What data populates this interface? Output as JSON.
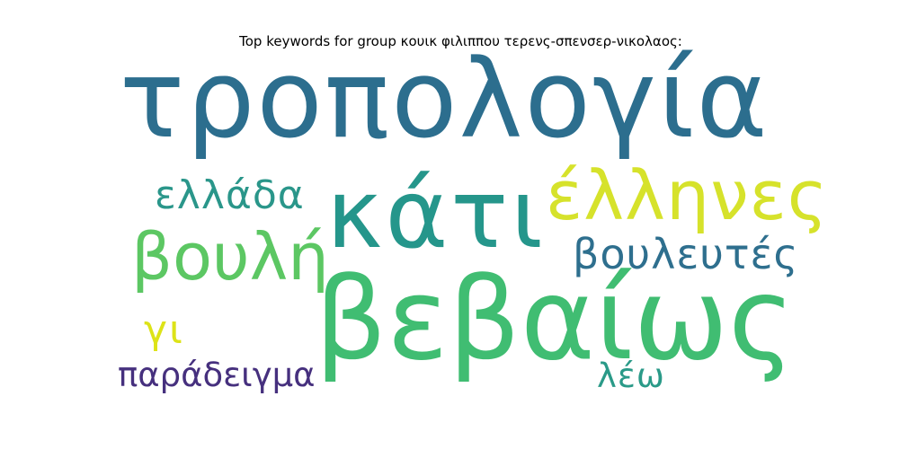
{
  "title": "Top keywords for group κουικ φιλιππου τερενς-σπενσερ-νικολαος:",
  "words": [
    {
      "text": "τροπολογία",
      "color": "#2c6e8e"
    },
    {
      "text": "κάτι",
      "color": "#25968b"
    },
    {
      "text": "έλληνες",
      "color": "#d6e22b"
    },
    {
      "text": "ελλάδα",
      "color": "#2a968a"
    },
    {
      "text": "βουλή",
      "color": "#5cc763"
    },
    {
      "text": "βουλευτές",
      "color": "#2e6f8e"
    },
    {
      "text": "βεβαίως",
      "color": "#40bd72"
    },
    {
      "text": "γι",
      "color": "#dde318"
    },
    {
      "text": "παράδειγμα",
      "color": "#46307e"
    },
    {
      "text": "λέω",
      "color": "#2a9a88"
    }
  ]
}
